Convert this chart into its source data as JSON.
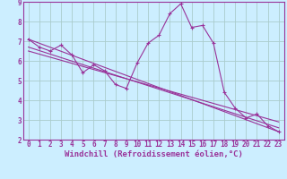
{
  "background_color": "#cceeff",
  "grid_color": "#aacccc",
  "line_color": "#993399",
  "marker_color": "#993399",
  "xlabel": "Windchill (Refroidissement éolien,°C)",
  "xlim": [
    -0.5,
    23.5
  ],
  "ylim": [
    2,
    9
  ],
  "xticks": [
    0,
    1,
    2,
    3,
    4,
    5,
    6,
    7,
    8,
    9,
    10,
    11,
    12,
    13,
    14,
    15,
    16,
    17,
    18,
    19,
    20,
    21,
    22,
    23
  ],
  "yticks": [
    2,
    3,
    4,
    5,
    6,
    7,
    8,
    9
  ],
  "series1_x": [
    0,
    1,
    2,
    3,
    4,
    5,
    6,
    7,
    8,
    9,
    10,
    11,
    12,
    13,
    14,
    15,
    16,
    17,
    18,
    19,
    20,
    21,
    22,
    23
  ],
  "series1_y": [
    7.1,
    6.7,
    6.5,
    6.8,
    6.3,
    5.4,
    5.8,
    5.5,
    4.8,
    4.6,
    5.9,
    6.9,
    7.3,
    8.4,
    8.9,
    7.7,
    7.8,
    6.9,
    4.4,
    3.6,
    3.1,
    3.3,
    2.7,
    2.4
  ],
  "series2_x": [
    0,
    23
  ],
  "series2_y": [
    7.1,
    2.4
  ],
  "series3_x": [
    0,
    23
  ],
  "series3_y": [
    6.7,
    2.6
  ],
  "series4_x": [
    0,
    23
  ],
  "series4_y": [
    6.5,
    2.9
  ],
  "tick_fontsize": 5.5,
  "xlabel_fontsize": 6.5,
  "lw": 0.8,
  "ms": 3.0
}
